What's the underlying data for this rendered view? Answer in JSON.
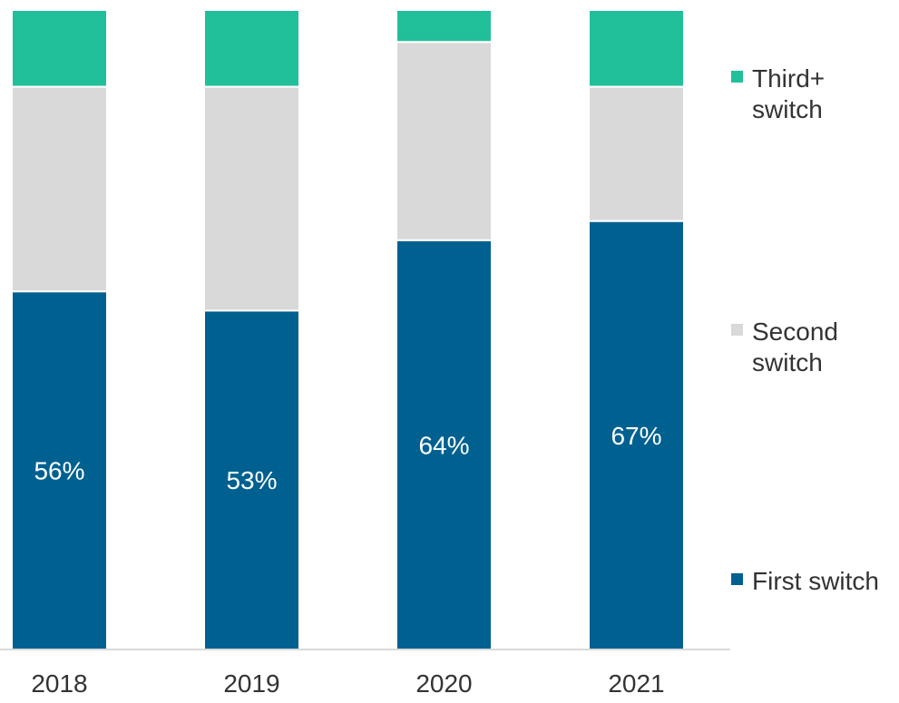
{
  "chart_data": {
    "type": "bar",
    "stacked": true,
    "categories": [
      "2018",
      "2019",
      "2020",
      "2021"
    ],
    "series": [
      {
        "name": "First switch",
        "values": [
          56,
          53,
          64,
          67
        ],
        "labels": [
          "56%",
          "53%",
          "64%",
          "67%"
        ]
      },
      {
        "name": "Second switch",
        "values": [
          32,
          35,
          31,
          21
        ],
        "labels": [
          "",
          "",
          "",
          ""
        ]
      },
      {
        "name": "Third+ switch",
        "values": [
          12,
          12,
          5,
          12
        ],
        "labels": [
          "",
          "",
          "",
          ""
        ]
      }
    ],
    "ylim": [
      0,
      100
    ],
    "grid": false,
    "legend_position": "right",
    "colors": {
      "First switch": "#006190",
      "Second switch": "#d9d9d9",
      "Third+ switch": "#22bf9b",
      "axis": "#d9d9d9",
      "label_inside": "#ffffff",
      "text": "#333333"
    }
  }
}
